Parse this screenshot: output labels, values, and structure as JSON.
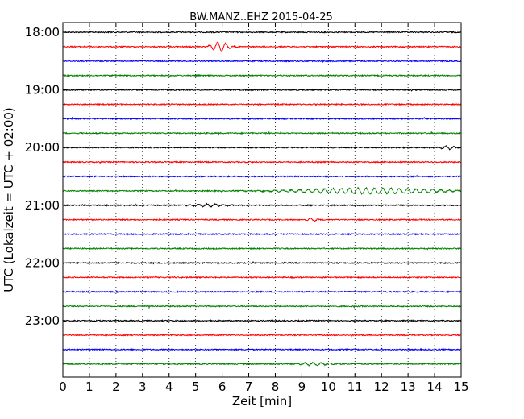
{
  "chart_data": {
    "type": "line",
    "title": "BW.MANZ..EHZ 2015-04-25",
    "xlabel": "Zeit  [min]",
    "ylabel": "UTC (Lokalzeit = UTC + 02:00)",
    "xlim": [
      0,
      15
    ],
    "x_ticks": [
      "0",
      "1",
      "2",
      "3",
      "4",
      "5",
      "6",
      "7",
      "8",
      "9",
      "10",
      "11",
      "12",
      "13",
      "14",
      "15"
    ],
    "y_ticks": [
      "18:00",
      "19:00",
      "20:00",
      "21:00",
      "22:00",
      "23:00"
    ],
    "vertical_grid": "dotted",
    "trace_interval_min": 15,
    "trace_colors": [
      "#000000",
      "#ff0000",
      "#0000ff",
      "#008000"
    ],
    "traces": [
      {
        "start": "18:00"
      },
      {
        "start": "18:15",
        "events": [
          {
            "t": 5.9,
            "amp": 1.0,
            "dur": 0.5
          }
        ]
      },
      {
        "start": "18:30"
      },
      {
        "start": "18:45"
      },
      {
        "start": "19:00"
      },
      {
        "start": "19:15"
      },
      {
        "start": "19:30"
      },
      {
        "start": "19:45"
      },
      {
        "start": "20:00",
        "events": [
          {
            "t": 14.5,
            "amp": 0.35,
            "dur": 0.4
          }
        ]
      },
      {
        "start": "20:15"
      },
      {
        "start": "20:30"
      },
      {
        "start": "20:45",
        "events": [
          {
            "t": 11.5,
            "amp": 0.6,
            "dur": 4.0
          }
        ]
      },
      {
        "start": "21:00",
        "events": [
          {
            "t": 5.5,
            "amp": 0.3,
            "dur": 1.0
          }
        ]
      },
      {
        "start": "21:15",
        "events": [
          {
            "t": 9.4,
            "amp": 0.3,
            "dur": 0.3
          }
        ]
      },
      {
        "start": "21:30"
      },
      {
        "start": "21:45"
      },
      {
        "start": "22:00"
      },
      {
        "start": "22:15"
      },
      {
        "start": "22:30"
      },
      {
        "start": "22:45"
      },
      {
        "start": "23:00"
      },
      {
        "start": "23:15"
      },
      {
        "start": "23:30"
      },
      {
        "start": "23:45",
        "events": [
          {
            "t": 9.5,
            "amp": 0.3,
            "dur": 1.0
          }
        ]
      }
    ]
  }
}
